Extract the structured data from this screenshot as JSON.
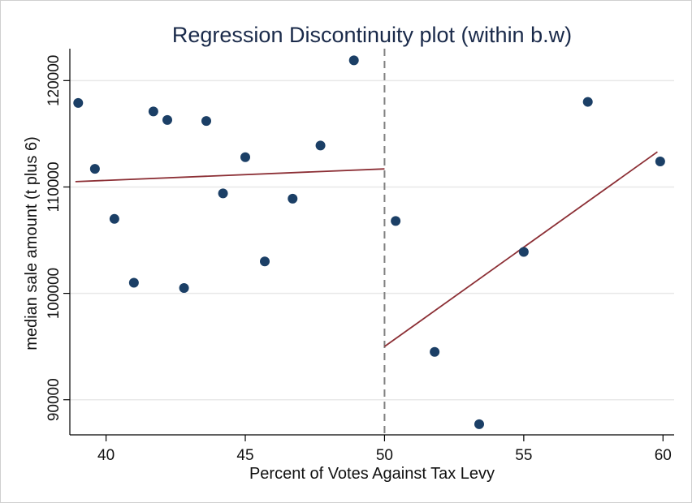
{
  "chart_data": {
    "type": "scatter",
    "title": "Regression Discontinuity plot (within b.w)",
    "xlabel": "Percent of Votes Against Tax Levy",
    "ylabel": "median sale amount (t plus 6)",
    "xlim": [
      38.7,
      60.4
    ],
    "ylim": [
      86700,
      123000
    ],
    "xticks": [
      40,
      45,
      50,
      55,
      60
    ],
    "yticks": [
      90000,
      100000,
      110000,
      120000
    ],
    "xtick_labels": [
      "40",
      "45",
      "50",
      "55",
      "60"
    ],
    "ytick_labels": [
      "90000",
      "100000",
      "110000",
      "120000"
    ],
    "grid": "horizontal",
    "cutoff": 50,
    "colors": {
      "points": "#1b3f66",
      "fit": "#8c2f35",
      "cutoff": "#808080",
      "grid": "#e8e8e8",
      "title": "#1a2a4a"
    },
    "series": [
      {
        "type": "scatter",
        "x": [
          39.0,
          39.6,
          40.3,
          41.0,
          41.7,
          42.2,
          42.8,
          43.6,
          44.2,
          45.0,
          45.7,
          46.7,
          47.7,
          48.9,
          50.4,
          51.8,
          53.4,
          55.0,
          57.3,
          59.9
        ],
        "y": [
          117900,
          111700,
          107000,
          101000,
          117100,
          116300,
          100500,
          116200,
          109400,
          112800,
          103000,
          108900,
          113900,
          121900,
          106800,
          94500,
          87700,
          103900,
          118000,
          112400
        ]
      },
      {
        "type": "line",
        "x": [
          38.9,
          50.0
        ],
        "y": [
          110500,
          111700
        ]
      },
      {
        "type": "line",
        "x": [
          50.0,
          59.8
        ],
        "y": [
          95000,
          113300
        ]
      }
    ]
  }
}
